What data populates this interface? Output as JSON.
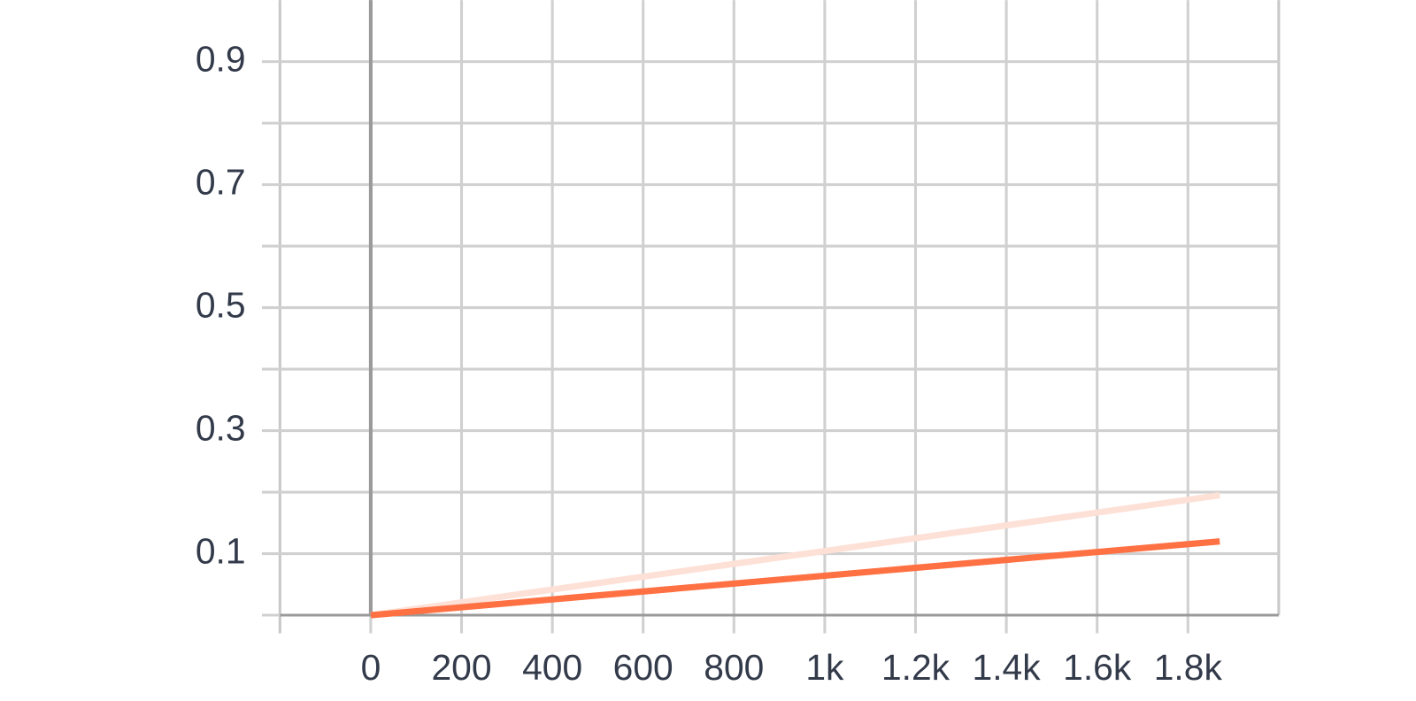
{
  "chart_data": {
    "type": "line",
    "x": [
      0,
      1870
    ],
    "series": [
      {
        "color": "#fde0d6",
        "values": [
          0,
          0.195
        ]
      },
      {
        "color": "#ff7043",
        "values": [
          0,
          0.12
        ]
      }
    ],
    "xlim": [
      -200,
      2000
    ],
    "xticks": [
      0,
      200,
      400,
      600,
      800,
      {
        "value": 1000,
        "label": "1k"
      },
      {
        "value": 1200,
        "label": "1.2k"
      },
      {
        "value": 1400,
        "label": "1.4k"
      },
      {
        "value": 1600,
        "label": "1.6k"
      },
      {
        "value": 1800,
        "label": "1.8k"
      }
    ],
    "ylim": [
      0,
      1
    ],
    "yticks": [
      0.1,
      0.3,
      0.5,
      0.7,
      0.9
    ],
    "yminor": [
      0,
      0.2,
      0.4,
      0.6,
      0.8
    ],
    "grid": true
  }
}
